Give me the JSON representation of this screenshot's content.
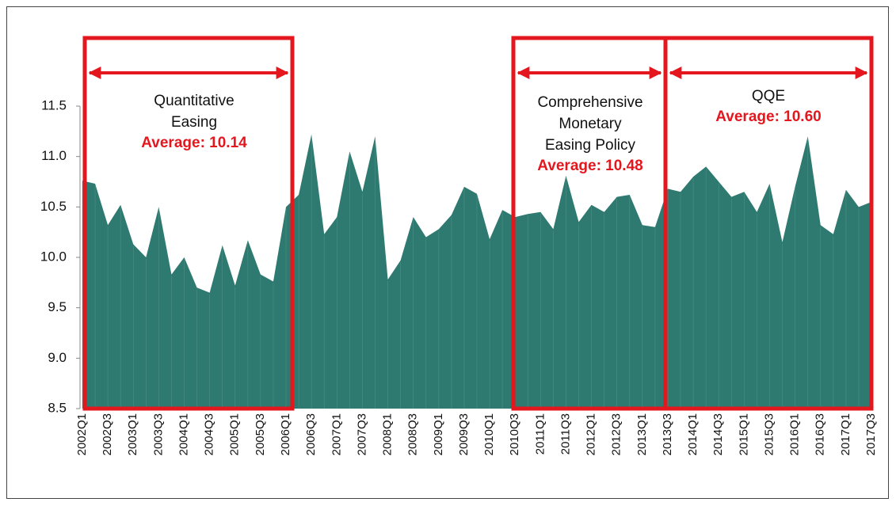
{
  "chart_data": {
    "type": "area",
    "categories": [
      "2002Q1",
      null,
      "2002Q3",
      null,
      "2003Q1",
      null,
      "2003Q3",
      null,
      "2004Q1",
      null,
      "2004Q3",
      null,
      "2005Q1",
      null,
      "2005Q3",
      null,
      "2006Q1",
      null,
      "2006Q3",
      null,
      "2007Q1",
      null,
      "2007Q3",
      null,
      "2008Q1",
      null,
      "2008Q3",
      null,
      "2009Q1",
      null,
      "2009Q3",
      null,
      "2010Q1",
      null,
      "2010Q3",
      null,
      "2011Q1",
      null,
      "2011Q3",
      null,
      "2012Q1",
      null,
      "2012Q3",
      null,
      "2013Q1",
      null,
      "2013Q3",
      null,
      "2014Q1",
      null,
      "2014Q3",
      null,
      "2015Q1",
      null,
      "2015Q3",
      null,
      "2016Q1",
      null,
      "2016Q3",
      null,
      "2017Q1",
      null,
      "2017Q3"
    ],
    "values": [
      10.76,
      10.73,
      10.32,
      10.52,
      10.13,
      10.0,
      10.5,
      9.83,
      10.0,
      9.7,
      9.65,
      10.12,
      9.72,
      10.17,
      9.83,
      9.76,
      10.5,
      10.62,
      11.22,
      10.23,
      10.4,
      11.05,
      10.65,
      11.2,
      9.78,
      9.97,
      10.4,
      10.2,
      10.28,
      10.42,
      10.7,
      10.63,
      10.18,
      10.47,
      10.4,
      10.43,
      10.45,
      10.28,
      10.81,
      10.35,
      10.52,
      10.45,
      10.6,
      10.62,
      10.32,
      10.3,
      10.68,
      10.65,
      10.8,
      10.9,
      10.75,
      10.6,
      10.65,
      10.45,
      10.73,
      10.15,
      10.7,
      11.2,
      10.32,
      10.23,
      10.67,
      10.5,
      10.55
    ],
    "color": "#2f7a70",
    "ylim": [
      8.5,
      12.0
    ],
    "yticks": [
      8.5,
      {
        "value": 9,
        "label": "9.0"
      },
      9.5,
      {
        "value": 10,
        "label": "10.0"
      },
      10.5,
      {
        "value": 11,
        "label": "11.0"
      },
      11.5
    ],
    "annotation_color": "#e3171d",
    "annotations": [
      {
        "text": [
          "Quantitative",
          "Easing"
        ],
        "highlight": "Average: 10.14"
      },
      {
        "text": [
          "Comprehensive",
          "Monetary",
          "Easing Policy"
        ],
        "highlight": "Average: 10.48"
      },
      {
        "text": [
          "QQE"
        ],
        "highlight": "Average: 10.60"
      }
    ]
  }
}
